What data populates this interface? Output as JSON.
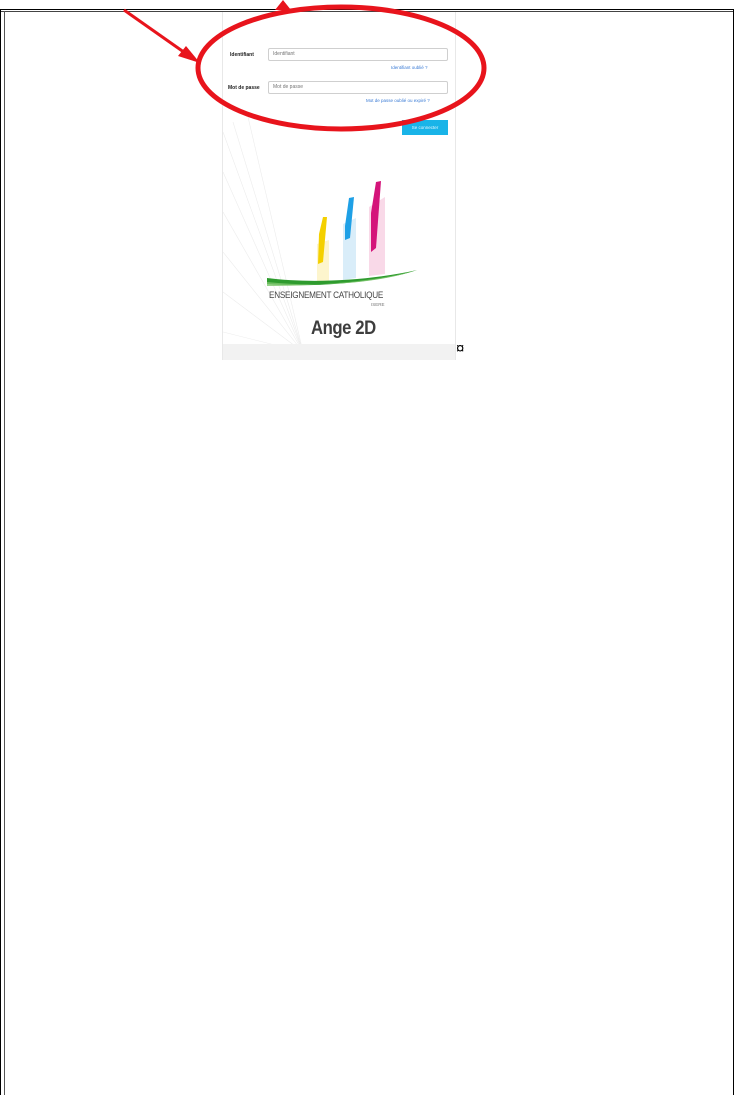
{
  "login_form": {
    "username_label": "Identifiant",
    "username_placeholder": "Identifiant",
    "forgot_username": "Identifiant oublié ?",
    "password_label": "Mot de passe",
    "password_placeholder": "Mot de passe",
    "forgot_password": "Mot de passe oublié ou expiré ?",
    "connect_button": "Se connecter"
  },
  "logo": {
    "organization": "ENSEIGNEMENT CATHOLIQUE",
    "region": "ISERE",
    "product": "Ange 2D"
  },
  "cell_marker": "¤",
  "colors": {
    "annotation": "#e8141c",
    "button": "#19b4e8",
    "logo_yellow": "#f4d000",
    "logo_blue": "#1ea0e6",
    "logo_magenta": "#d4147a",
    "logo_green": "#2e9b2e"
  }
}
